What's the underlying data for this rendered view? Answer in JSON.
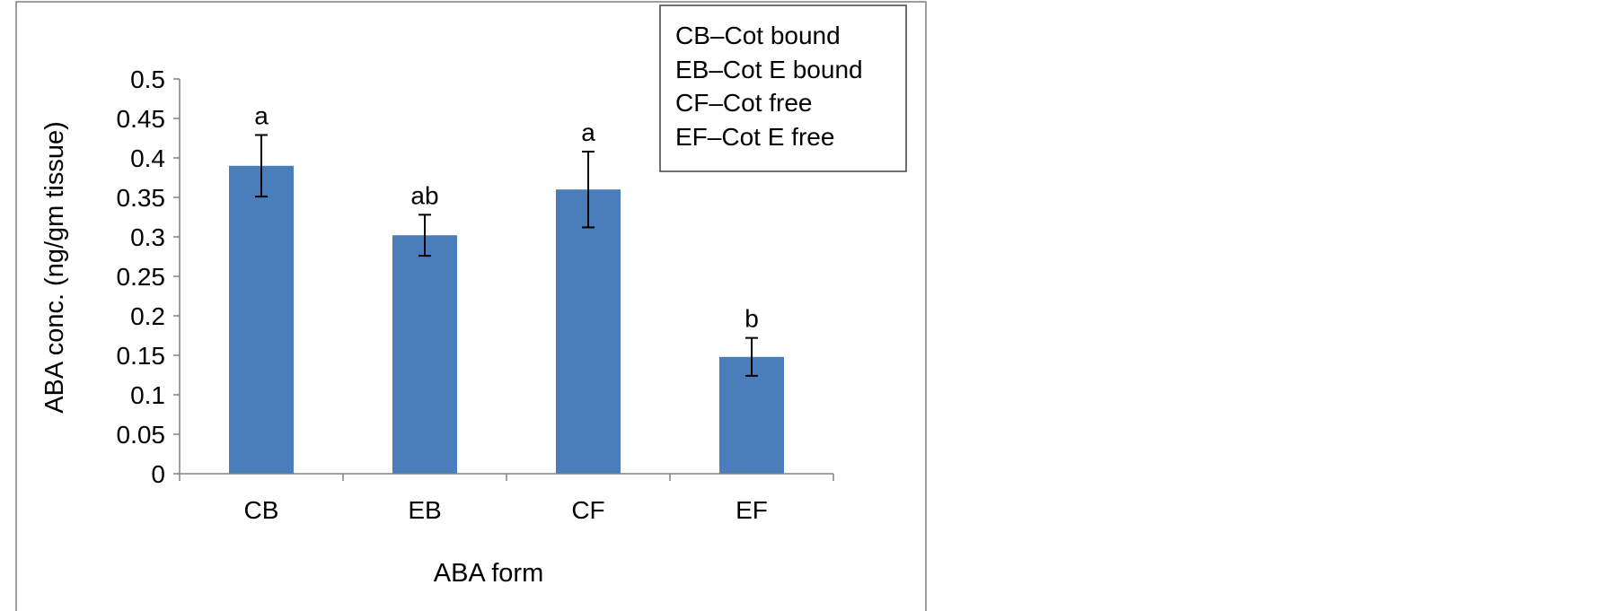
{
  "chart_data": {
    "type": "bar",
    "categories": [
      "CB",
      "EB",
      "CF",
      "EF"
    ],
    "values": [
      0.39,
      0.302,
      0.36,
      0.148
    ],
    "errors": [
      0.039,
      0.026,
      0.048,
      0.024
    ],
    "significance_letters": [
      "a",
      "ab",
      "a",
      "b"
    ],
    "xlabel": "ABA form",
    "ylabel": "ABA conc. (ng/gm tissue)",
    "ylim": [
      0,
      0.5
    ],
    "yticks": [
      "0",
      "0.05",
      "0.1",
      "0.15",
      "0.2",
      "0.25",
      "0.3",
      "0.35",
      "0.4",
      "0.45",
      "0.5"
    ],
    "grid": false,
    "legend_placement": "top-right",
    "legend": [
      "CB–Cot bound",
      "EB–Cot E bound",
      "CF–Cot free",
      "EF–Cot E free"
    ],
    "bar_color": "#4a7ebb"
  }
}
